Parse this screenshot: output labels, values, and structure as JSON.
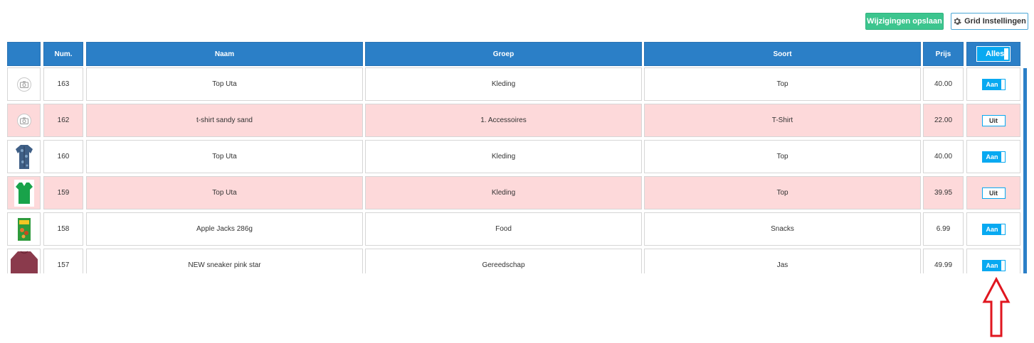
{
  "toolbar": {
    "save_label": "Wijzigingen opslaan",
    "grid_settings_label": "Grid Instellingen",
    "grid_settings_icon": "gear-icon"
  },
  "grid": {
    "headers": [
      "",
      "Num.",
      "Naam",
      "Groep",
      "Soort",
      "Prijs"
    ],
    "alles_label": "Alles",
    "rows": [
      {
        "image": "camera-placeholder-icon",
        "num": "163",
        "naam": "Top Uta",
        "groep": "Kleding",
        "soort": "Top",
        "prijs": "40.00",
        "status": "Aan",
        "highlight": false
      },
      {
        "image": "camera-placeholder-icon",
        "num": "162",
        "naam": "t-shirt sandy sand",
        "groep": "1. Accessoires",
        "soort": "T-Shirt",
        "prijs": "22.00",
        "status": "Uit",
        "highlight": true
      },
      {
        "image": "shirt-thumbnail",
        "num": "160",
        "naam": "Top Uta",
        "groep": "Kleding",
        "soort": "Top",
        "prijs": "40.00",
        "status": "Aan",
        "highlight": false
      },
      {
        "image": "green-top-thumbnail",
        "num": "159",
        "naam": "Top Uta",
        "groep": "Kleding",
        "soort": "Top",
        "prijs": "39.95",
        "status": "Uit",
        "highlight": true
      },
      {
        "image": "cereal-box-thumbnail",
        "num": "158",
        "naam": "Apple Jacks 286g",
        "groep": "Food",
        "soort": "Snacks",
        "prijs": "6.99",
        "status": "Aan",
        "highlight": false
      },
      {
        "image": "sweater-thumbnail",
        "num": "157",
        "naam": "NEW sneaker pink star",
        "groep": "Gereedschap",
        "soort": "Jas",
        "prijs": "49.99",
        "status": "Aan",
        "highlight": false
      }
    ]
  },
  "colors": {
    "header_bg": "#2b7fc7",
    "save_button": "#3cc58e",
    "toggle_on": "#08a9f1",
    "row_highlight": "#fdd9da",
    "annotation_arrow": "#e0161f"
  },
  "annotation": {
    "icon": "red-up-arrow-icon"
  }
}
